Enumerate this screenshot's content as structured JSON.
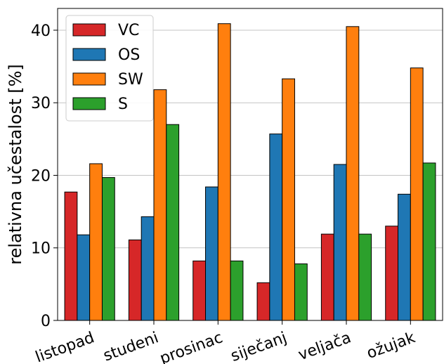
{
  "chart_data": {
    "type": "bar",
    "ylabel": "relativna učestalost [%]",
    "xlabel": "",
    "ylim": [
      0,
      43
    ],
    "yticks": [
      0,
      10,
      20,
      30,
      40
    ],
    "grid": "horizontal",
    "legend_position": "top-left",
    "categories": [
      "listopad",
      "studeni",
      "prosinac",
      "siječanj",
      "veljača",
      "ožujak"
    ],
    "series": [
      {
        "name": "VC",
        "color": "#d62728",
        "values": [
          17.7,
          11.1,
          8.2,
          5.2,
          11.9,
          13.0
        ]
      },
      {
        "name": "OS",
        "color": "#1f77b4",
        "values": [
          11.8,
          14.3,
          18.4,
          25.7,
          21.5,
          17.4
        ]
      },
      {
        "name": "SW",
        "color": "#ff7f0e",
        "values": [
          21.6,
          31.8,
          40.9,
          33.3,
          40.5,
          34.8
        ]
      },
      {
        "name": "S",
        "color": "#2ca02c",
        "values": [
          19.7,
          27.0,
          8.2,
          7.8,
          11.9,
          21.7
        ]
      }
    ]
  }
}
